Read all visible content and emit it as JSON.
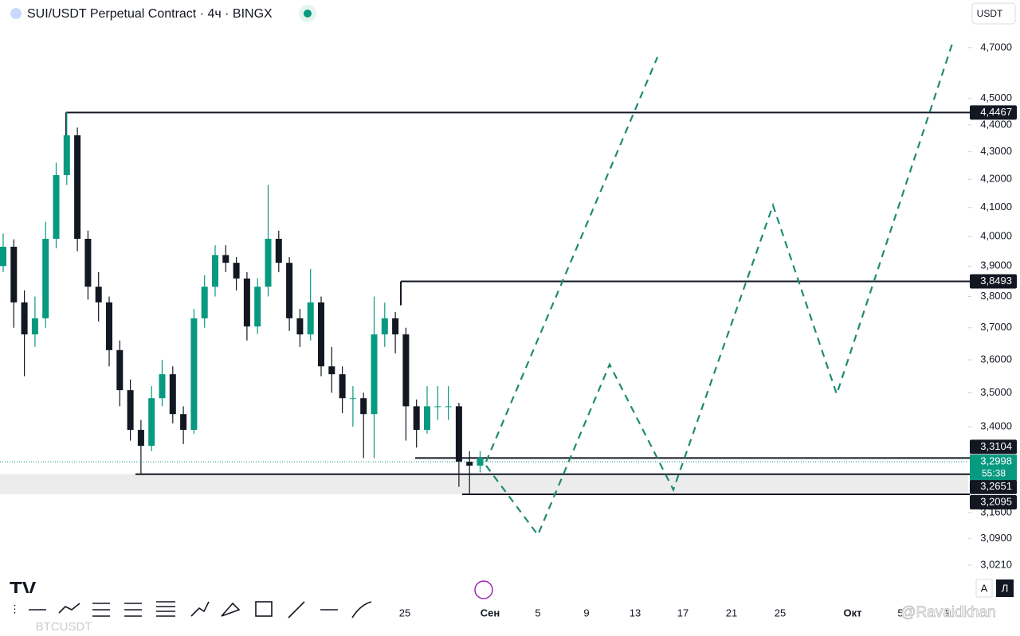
{
  "header": {
    "title": "SUI/USDT Perpetual Contract · 4ч · BINGX",
    "currency": "USDT"
  },
  "chart_data": {
    "type": "candlestick",
    "log_scale": true,
    "up_color": "#089981",
    "down_color": "#131722",
    "ylim": [
      2.96,
      4.78
    ],
    "yticks": [
      {
        "value": 3.021,
        "label": "3,0210"
      },
      {
        "value": 3.09,
        "label": "3,0900"
      },
      {
        "value": 3.16,
        "label": "3,1600"
      },
      {
        "value": 3.4,
        "label": "3,4000"
      },
      {
        "value": 3.5,
        "label": "3,5000"
      },
      {
        "value": 3.6,
        "label": "3,6000"
      },
      {
        "value": 3.7,
        "label": "3,7000"
      },
      {
        "value": 3.8,
        "label": "3,8000"
      },
      {
        "value": 3.9,
        "label": "3,9000"
      },
      {
        "value": 4,
        "label": "4,0000"
      },
      {
        "value": 4.1,
        "label": "4,1000"
      },
      {
        "value": 4.2,
        "label": "4,2000"
      },
      {
        "value": 4.3,
        "label": "4,3000"
      },
      {
        "value": 4.4,
        "label": "4,4000"
      },
      {
        "value": 4.5,
        "label": "4,5000"
      },
      {
        "value": 4.7,
        "label": "4,7000"
      }
    ],
    "x_labels": [
      "25",
      "Сен",
      "5",
      "9",
      "13",
      "17",
      "21",
      "25",
      "Окт",
      "5",
      "9"
    ],
    "candles": [
      [
        3.9,
        4.01,
        3.88,
        3.965
      ],
      [
        3.965,
        3.99,
        3.7,
        3.781
      ],
      [
        3.781,
        3.82,
        3.55,
        3.679
      ],
      [
        3.679,
        3.8,
        3.64,
        3.73
      ],
      [
        3.73,
        4.05,
        3.7,
        3.992
      ],
      [
        3.992,
        4.26,
        3.96,
        4.215
      ],
      [
        4.215,
        4.4467,
        4.18,
        4.361
      ],
      [
        4.361,
        4.39,
        3.95,
        3.992
      ],
      [
        3.992,
        4.02,
        3.79,
        3.832
      ],
      [
        3.832,
        3.88,
        3.72,
        3.781
      ],
      [
        3.781,
        3.8,
        3.58,
        3.63
      ],
      [
        3.63,
        3.66,
        3.46,
        3.508
      ],
      [
        3.508,
        3.54,
        3.36,
        3.391
      ],
      [
        3.391,
        3.42,
        3.2651,
        3.345
      ],
      [
        3.345,
        3.52,
        3.33,
        3.484
      ],
      [
        3.484,
        3.6,
        3.46,
        3.556
      ],
      [
        3.556,
        3.58,
        3.41,
        3.437
      ],
      [
        3.437,
        3.46,
        3.35,
        3.391
      ],
      [
        3.391,
        3.76,
        3.38,
        3.73
      ],
      [
        3.73,
        3.87,
        3.7,
        3.832
      ],
      [
        3.832,
        3.97,
        3.8,
        3.937
      ],
      [
        3.937,
        3.97,
        3.88,
        3.911
      ],
      [
        3.911,
        3.93,
        3.82,
        3.859
      ],
      [
        3.859,
        3.88,
        3.66,
        3.704
      ],
      [
        3.704,
        3.86,
        3.68,
        3.832
      ],
      [
        3.832,
        4.18,
        3.8,
        3.992
      ],
      [
        3.992,
        4.02,
        3.88,
        3.911
      ],
      [
        3.911,
        3.93,
        3.69,
        3.73
      ],
      [
        3.73,
        3.76,
        3.64,
        3.679
      ],
      [
        3.679,
        3.89,
        3.66,
        3.781
      ],
      [
        3.781,
        3.8,
        3.55,
        3.58
      ],
      [
        3.58,
        3.64,
        3.5,
        3.556
      ],
      [
        3.556,
        3.58,
        3.44,
        3.484
      ],
      [
        3.484,
        3.52,
        3.4,
        3.484
      ],
      [
        3.484,
        3.5,
        3.31,
        3.437
      ],
      [
        3.437,
        3.8,
        3.31,
        3.679
      ],
      [
        3.679,
        3.78,
        3.64,
        3.73
      ],
      [
        3.73,
        3.75,
        3.62,
        3.679
      ],
      [
        3.679,
        3.7,
        3.36,
        3.46
      ],
      [
        3.46,
        3.48,
        3.34,
        3.391
      ],
      [
        3.391,
        3.52,
        3.38,
        3.46
      ],
      [
        3.46,
        3.52,
        3.42,
        3.46
      ],
      [
        3.46,
        3.52,
        3.42,
        3.46
      ],
      [
        3.46,
        3.47,
        3.23,
        3.3
      ],
      [
        3.3,
        3.33,
        3.2095,
        3.289
      ],
      [
        3.289,
        3.33,
        3.27,
        3.311
      ]
    ],
    "levels": [
      {
        "value": 4.4467,
        "label": "4,4467"
      },
      {
        "value": 3.8493,
        "label": "3,8493"
      },
      {
        "value": 3.3104,
        "label": "3,3104"
      },
      {
        "value": 3.2651,
        "label": "3,2651"
      },
      {
        "value": 3.2095,
        "label": "3,2095"
      }
    ],
    "current_price": {
      "value": 3.2998,
      "label": "3,2998"
    },
    "countdown": "55:38",
    "projections": [
      {
        "color": "#1e8a73",
        "values": [
          3.289,
          3.1,
          3.586,
          3.222,
          4.108,
          3.496,
          4.716
        ]
      },
      {
        "color": "#1e8a73",
        "values": [
          3.3,
          4.662
        ]
      }
    ]
  },
  "footer": {
    "scale_buttons": [
      "A",
      "Л"
    ],
    "symbol": "BTCUSDT",
    "watermark": "@Ravaidkhan"
  }
}
